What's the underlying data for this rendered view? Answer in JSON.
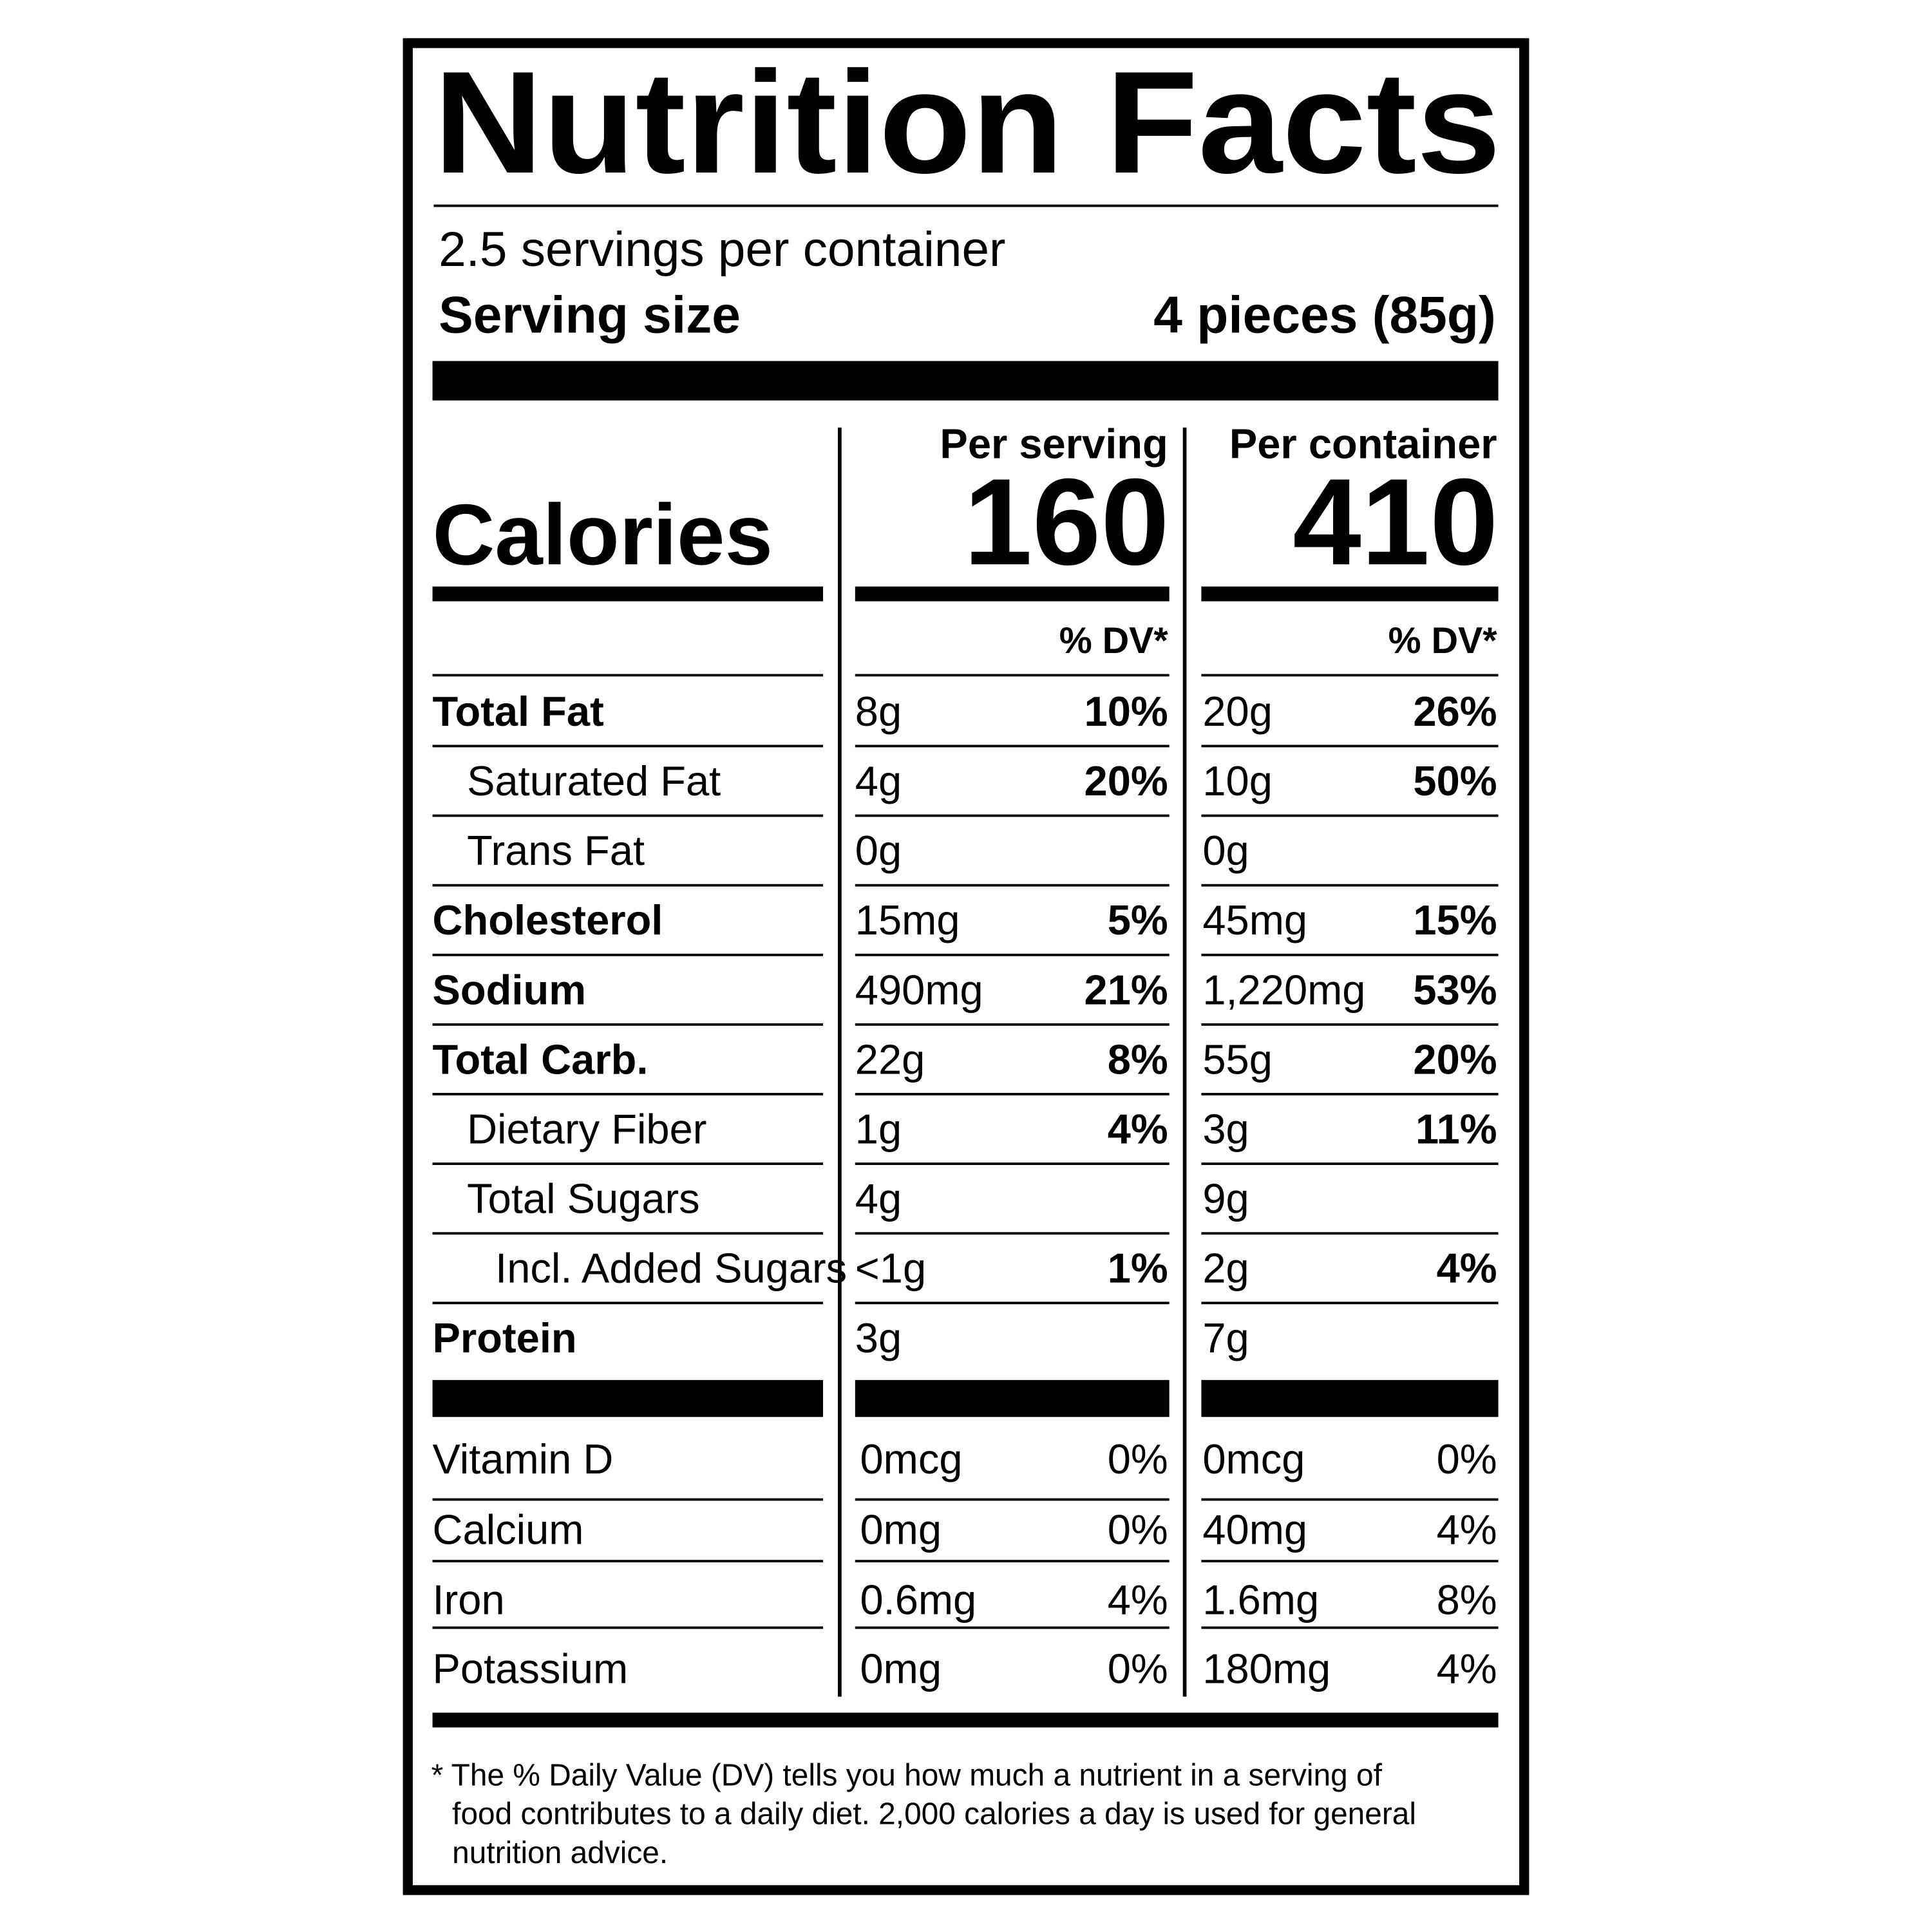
{
  "title": "Nutrition Facts",
  "servings_per_container": "2.5 servings per container",
  "serving_size": {
    "label": "Serving size",
    "value": "4 pieces (85g)"
  },
  "columns": [
    "Per serving",
    "Per container"
  ],
  "calories": {
    "label": "Calories",
    "values": [
      "160",
      "410"
    ]
  },
  "dv_header": [
    "% DV*",
    "% DV*"
  ],
  "nutrients": [
    {
      "name": "Total Fat",
      "bold": true,
      "indent": 0,
      "amounts": [
        "8g",
        "20g"
      ],
      "dv": [
        "10%",
        "26%"
      ]
    },
    {
      "name": "Saturated Fat",
      "bold": false,
      "indent": 1,
      "amounts": [
        "4g",
        "10g"
      ],
      "dv": [
        "20%",
        "50%"
      ]
    },
    {
      "name": "Trans Fat",
      "bold": false,
      "indent": 1,
      "amounts": [
        "0g",
        "0g"
      ],
      "dv": [
        null,
        null
      ]
    },
    {
      "name": "Cholesterol",
      "bold": true,
      "indent": 0,
      "amounts": [
        "15mg",
        "45mg"
      ],
      "dv": [
        "5%",
        "15%"
      ]
    },
    {
      "name": "Sodium",
      "bold": true,
      "indent": 0,
      "amounts": [
        "490mg",
        "1,220mg"
      ],
      "dv": [
        "21%",
        "53%"
      ]
    },
    {
      "name": "Total Carb.",
      "bold": true,
      "indent": 0,
      "amounts": [
        "22g",
        "55g"
      ],
      "dv": [
        "8%",
        "20%"
      ]
    },
    {
      "name": "Dietary Fiber",
      "bold": false,
      "indent": 1,
      "amounts": [
        "1g",
        "3g"
      ],
      "dv": [
        "4%",
        "11%"
      ]
    },
    {
      "name": "Total Sugars",
      "bold": false,
      "indent": 1,
      "amounts": [
        "4g",
        "9g"
      ],
      "dv": [
        null,
        null
      ]
    },
    {
      "name": "Incl. Added Sugars",
      "bold": false,
      "indent": 2,
      "amounts": [
        "<1g",
        "2g"
      ],
      "dv": [
        "1%",
        "4%"
      ]
    },
    {
      "name": "Protein",
      "bold": true,
      "indent": 0,
      "amounts": [
        "3g",
        "7g"
      ],
      "dv": [
        null,
        null
      ]
    }
  ],
  "vitamins": [
    {
      "name": "Vitamin D",
      "amounts": [
        "0mcg",
        "0mcg"
      ],
      "dv": [
        "0%",
        "0%"
      ]
    },
    {
      "name": "Calcium",
      "amounts": [
        "0mg",
        "40mg"
      ],
      "dv": [
        "0%",
        "4%"
      ]
    },
    {
      "name": "Iron",
      "amounts": [
        "0.6mg",
        "1.6mg"
      ],
      "dv": [
        "4%",
        "8%"
      ]
    },
    {
      "name": "Potassium",
      "amounts": [
        "0mg",
        "180mg"
      ],
      "dv": [
        "0%",
        "4%"
      ]
    }
  ],
  "footnote": [
    "* The % Daily Value (DV) tells you how much a nutrient in a serving of",
    "food contributes to a daily diet. 2,000 calories a day is used for general",
    "nutrition advice."
  ]
}
